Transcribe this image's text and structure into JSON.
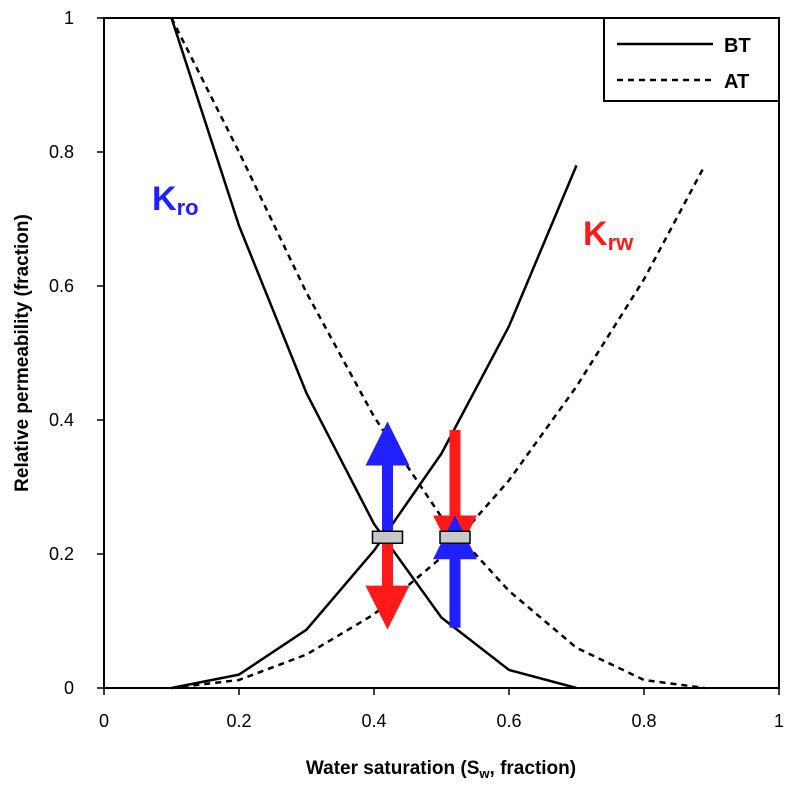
{
  "chart_data": {
    "type": "line",
    "xlabel": "Water saturation (S",
    "xlabel_sub": "w",
    "xlabel_tail": ", fraction)",
    "ylabel": "Relative permeability (fraction)",
    "xlim": [
      0,
      1
    ],
    "ylim": [
      0,
      1
    ],
    "x_ticks": [
      "0",
      "0.2",
      "0.4",
      "0.6",
      "0.8",
      "1"
    ],
    "y_ticks": [
      "0",
      "0.2",
      "0.4",
      "0.6",
      "0.8",
      "1"
    ],
    "legend_position": "top-right",
    "legend": [
      {
        "name": "BT",
        "style": "solid"
      },
      {
        "name": "AT",
        "style": "dashed"
      }
    ],
    "series": [
      {
        "name": "BT",
        "curve": "Kro",
        "style": "solid",
        "x": [
          0.1,
          0.2,
          0.3,
          0.4,
          0.5,
          0.6,
          0.7
        ],
        "y": [
          1.0,
          0.69,
          0.44,
          0.245,
          0.105,
          0.027,
          0.0
        ]
      },
      {
        "name": "BT",
        "curve": "Krw",
        "style": "solid",
        "x": [
          0.1,
          0.2,
          0.3,
          0.4,
          0.5,
          0.6,
          0.7
        ],
        "y": [
          0.0,
          0.02,
          0.087,
          0.205,
          0.35,
          0.54,
          0.78
        ]
      },
      {
        "name": "AT",
        "curve": "Kro",
        "style": "dashed",
        "x": [
          0.1,
          0.2,
          0.3,
          0.4,
          0.5,
          0.6,
          0.7,
          0.8,
          0.89
        ],
        "y": [
          1.0,
          0.8,
          0.59,
          0.405,
          0.255,
          0.145,
          0.06,
          0.012,
          0.0
        ]
      },
      {
        "name": "AT",
        "curve": "Krw",
        "style": "dashed",
        "x": [
          0.1,
          0.2,
          0.3,
          0.4,
          0.5,
          0.6,
          0.7,
          0.8,
          0.89
        ],
        "y": [
          0.0,
          0.012,
          0.05,
          0.11,
          0.195,
          0.31,
          0.45,
          0.61,
          0.78
        ]
      }
    ],
    "annotations": [
      {
        "main": "K",
        "sub": "ro",
        "color": "#1f1fff",
        "x": 0.08,
        "y": 0.72
      },
      {
        "main": "K",
        "sub": "rw",
        "color": "#ff1a1a",
        "x": 0.71,
        "y": 0.655
      }
    ],
    "arrows": [
      {
        "color": "#1f1fff",
        "x": 0.42,
        "from": 0.225,
        "to": 0.365
      },
      {
        "color": "#ff1a1a",
        "x": 0.42,
        "from": 0.225,
        "to": 0.12
      },
      {
        "color": "#ff1a1a",
        "x": 0.52,
        "from": 0.385,
        "to": 0.225
      },
      {
        "color": "#1f1fff",
        "x": 0.52,
        "from": 0.09,
        "to": 0.225
      }
    ],
    "markers": [
      {
        "x": 0.42,
        "y": 0.225
      },
      {
        "x": 0.52,
        "y": 0.225
      }
    ]
  }
}
